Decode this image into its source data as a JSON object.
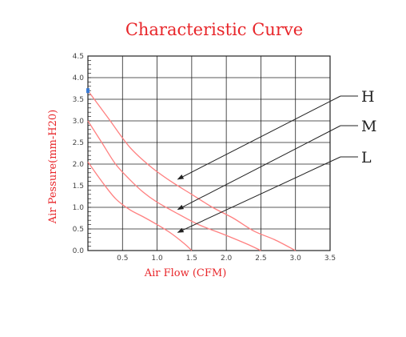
{
  "chart_data": {
    "type": "line",
    "title": "Characteristic Curve",
    "xlabel": "Air Flow (CFM)",
    "ylabel": "Air Pessure(mm-H20)",
    "xlim": [
      0,
      3.5
    ],
    "ylim": [
      0,
      4.5
    ],
    "x_ticks": [
      "0.5",
      "1.0",
      "1.5",
      "2.0",
      "2.5",
      "3.0",
      "3.5"
    ],
    "y_ticks": [
      "0.0",
      "0.5",
      "1.0",
      "1.5",
      "2.0",
      "2.5",
      "3.0",
      "3.5",
      "4.0",
      "4.5"
    ],
    "grid": true,
    "series": [
      {
        "name": "H",
        "points": [
          [
            0,
            3.7
          ],
          [
            0.3,
            3.05
          ],
          [
            0.6,
            2.4
          ],
          [
            0.9,
            1.95
          ],
          [
            1.2,
            1.6
          ],
          [
            1.5,
            1.3
          ],
          [
            1.8,
            1.0
          ],
          [
            2.1,
            0.75
          ],
          [
            2.4,
            0.45
          ],
          [
            2.7,
            0.25
          ],
          [
            3.0,
            0.0
          ]
        ]
      },
      {
        "name": "M",
        "points": [
          [
            0,
            3.0
          ],
          [
            0.2,
            2.5
          ],
          [
            0.4,
            2.0
          ],
          [
            0.6,
            1.65
          ],
          [
            0.8,
            1.35
          ],
          [
            1.0,
            1.12
          ],
          [
            1.3,
            0.85
          ],
          [
            1.6,
            0.6
          ],
          [
            2.0,
            0.35
          ],
          [
            2.3,
            0.15
          ],
          [
            2.5,
            0.0
          ]
        ]
      },
      {
        "name": "L",
        "points": [
          [
            0,
            2.05
          ],
          [
            0.2,
            1.6
          ],
          [
            0.4,
            1.2
          ],
          [
            0.6,
            0.95
          ],
          [
            0.8,
            0.78
          ],
          [
            1.0,
            0.6
          ],
          [
            1.2,
            0.4
          ],
          [
            1.4,
            0.15
          ],
          [
            1.5,
            0.0
          ]
        ]
      }
    ],
    "colors": {
      "series": "#ff8080",
      "title": "#e8262a",
      "grid": "#222222",
      "marker": "#3a7bd5"
    }
  }
}
